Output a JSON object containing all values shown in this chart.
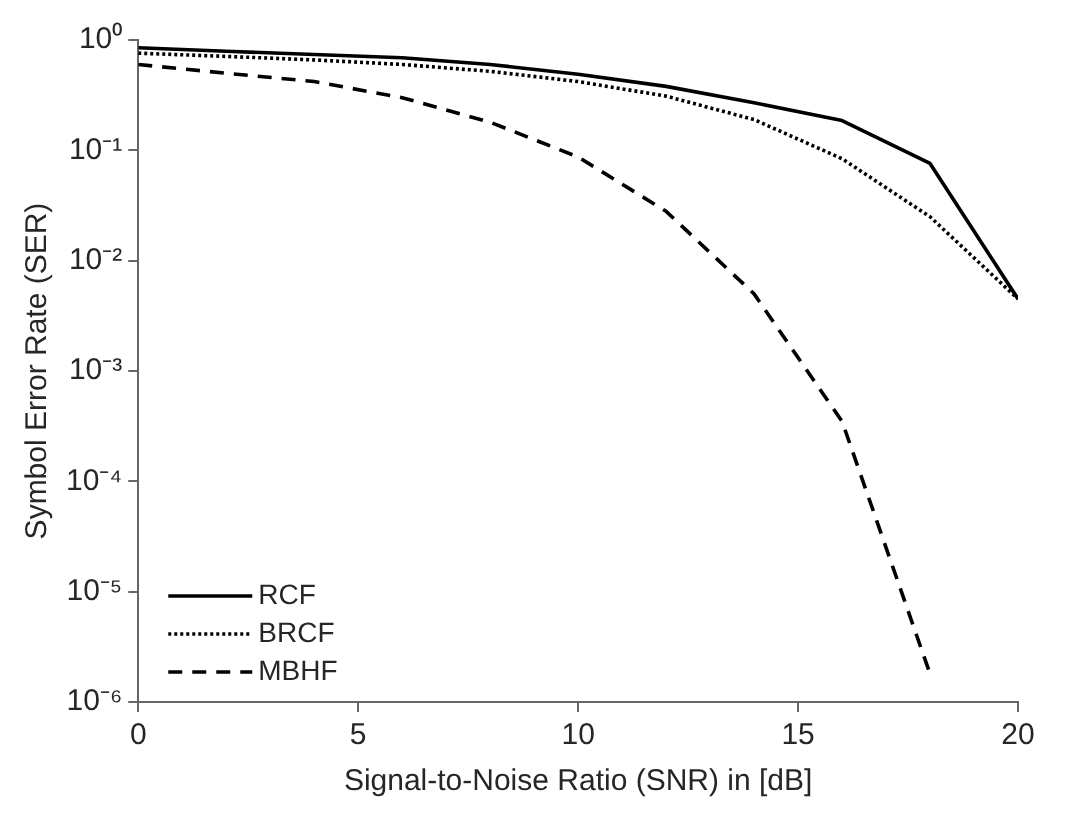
{
  "chart_data": {
    "type": "line",
    "xlabel": "Signal-to-Noise Ratio (SNR) in [dB]",
    "ylabel": "Symbol Error Rate (SER)",
    "x": [
      0,
      2,
      4,
      6,
      8,
      10,
      12,
      14,
      16,
      18,
      20
    ],
    "series": [
      {
        "name": "RCF",
        "color": "#000000",
        "line_style": "solid",
        "values": [
          0.85,
          0.79,
          0.74,
          0.69,
          0.6,
          0.49,
          0.38,
          0.27,
          0.186,
          0.076,
          0.0045
        ]
      },
      {
        "name": "BRCF",
        "color": "#000000",
        "line_style": "dotted",
        "values": [
          0.76,
          0.71,
          0.66,
          0.6,
          0.52,
          0.42,
          0.31,
          0.19,
          0.084,
          0.025,
          0.0045
        ]
      },
      {
        "name": "MBHF",
        "color": "#000000",
        "line_style": "dashed",
        "values": [
          0.6,
          0.5,
          0.42,
          0.3,
          0.18,
          0.087,
          0.028,
          0.005,
          0.00035,
          1.8e-06,
          null
        ]
      }
    ],
    "log": "y",
    "xlim": [
      0,
      20
    ],
    "xticks": [
      0,
      5,
      10,
      15,
      20
    ],
    "ylim": [
      1e-06,
      1
    ],
    "yticks": [
      {
        "value": 1e-06,
        "label": "10⁻⁶"
      },
      {
        "value": 1e-05,
        "label": "10⁻⁵"
      },
      {
        "value": 0.0001,
        "label": "10⁻⁴"
      },
      {
        "value": 0.001,
        "label": "10⁻³"
      },
      {
        "value": 0.01,
        "label": "10⁻²"
      },
      {
        "value": 0.1,
        "label": "10⁻¹"
      },
      {
        "value": 1,
        "label": "10⁰"
      }
    ],
    "grid": false,
    "legend": "bottom left",
    "marker": "none"
  }
}
